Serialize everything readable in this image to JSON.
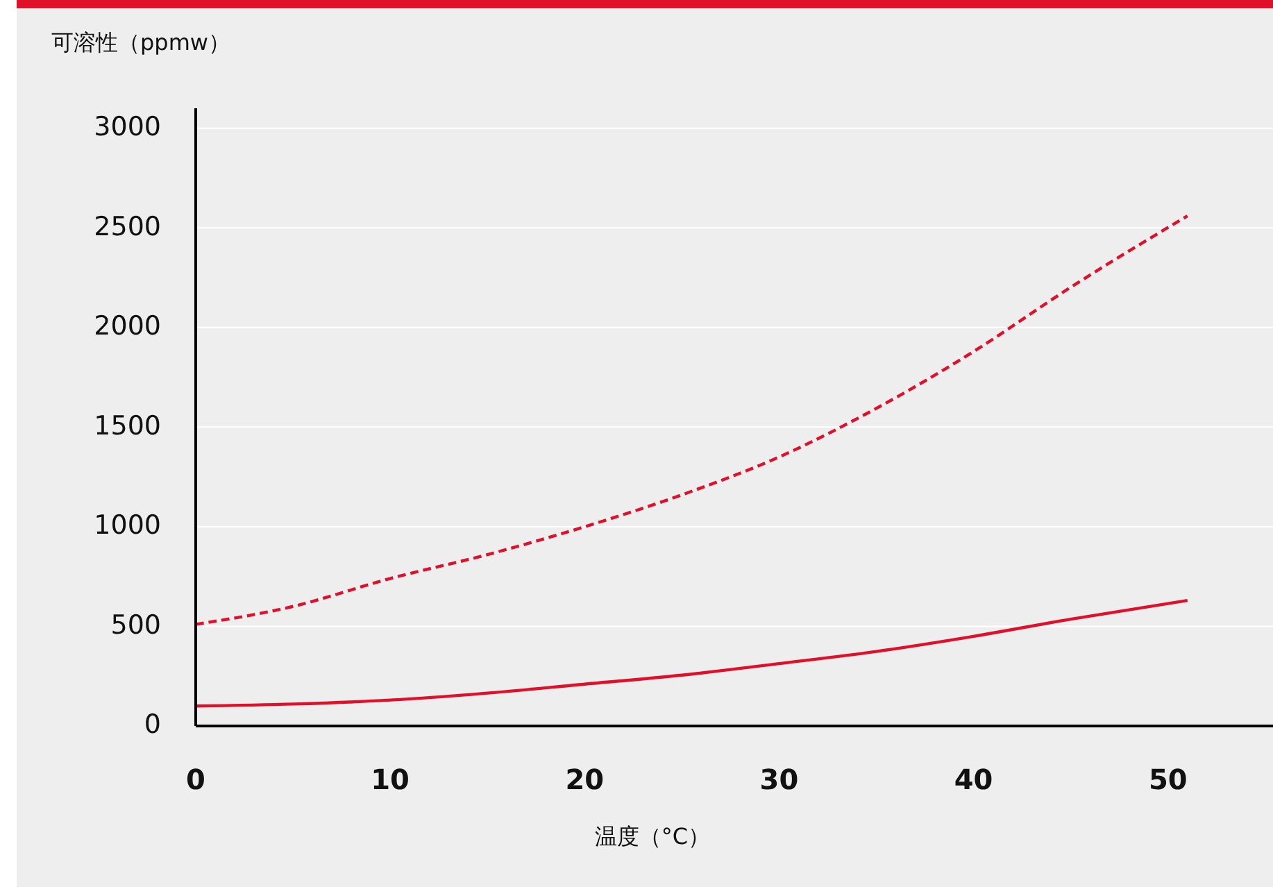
{
  "chart_data": {
    "type": "line",
    "ylabel": "可溶性（ppmw）",
    "xlabel": "温度（°C）",
    "xlim": [
      0,
      55.4
    ],
    "xticks": [
      0,
      10,
      20,
      30,
      40,
      50
    ],
    "ylim": [
      0,
      3100
    ],
    "yticks": [
      0,
      500,
      1000,
      1500,
      2000,
      2500,
      3000
    ],
    "grid": "y",
    "marker": "none",
    "series": [
      {
        "color": "#e0102a",
        "line_style": "dashed",
        "x": [
          0,
          5,
          10,
          15,
          20,
          25,
          30,
          35,
          40,
          45,
          51
        ],
        "values": [
          510,
          600,
          740,
          860,
          1000,
          1160,
          1350,
          1594,
          1879,
          2202,
          2560
        ]
      },
      {
        "color": "#e0102a",
        "line_style": "solid",
        "x": [
          0,
          5,
          10,
          15,
          20,
          25,
          30,
          35,
          40,
          45,
          51
        ],
        "values": [
          100,
          110,
          130,
          165,
          210,
          255,
          313,
          374,
          450,
          536,
          630
        ]
      }
    ]
  }
}
